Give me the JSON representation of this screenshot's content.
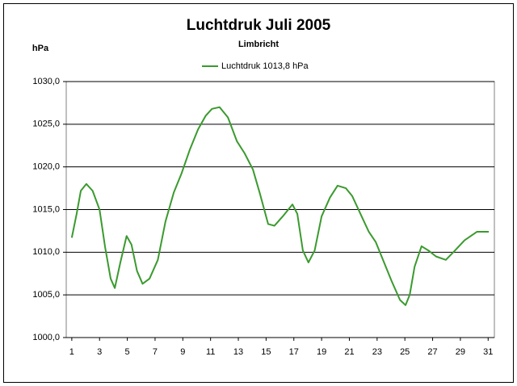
{
  "chart_data": {
    "type": "line",
    "title": "Luchtdruk Juli 2005",
    "subtitle": "Limbricht",
    "y_label": "hPa",
    "x": [
      1,
      1.35,
      1.65,
      2.05,
      2.5,
      3,
      3.4,
      3.8,
      4.1,
      4.5,
      4.95,
      5.3,
      5.7,
      6.1,
      6.6,
      7.2,
      7.75,
      8.35,
      8.9,
      9.5,
      10.1,
      10.65,
      11.1,
      11.65,
      12.25,
      12.9,
      13.45,
      14.05,
      14.55,
      15.15,
      15.6,
      16.2,
      16.9,
      17.25,
      17.65,
      18.05,
      18.5,
      19,
      19.6,
      20.15,
      20.75,
      21.2,
      21.8,
      22.4,
      22.9,
      23.5,
      24.05,
      24.65,
      25.05,
      25.35,
      25.7,
      26.2,
      26.7,
      27.25,
      27.95,
      28.55,
      29.3,
      30.2,
      31.05
    ],
    "series": [
      {
        "name": "Luchtdruk 1013,8 hPa",
        "color": "#3a9a2e",
        "values": [
          1011.7,
          1014.5,
          1017.2,
          1018.0,
          1017.2,
          1015.0,
          1010.6,
          1006.9,
          1005.8,
          1008.8,
          1011.9,
          1010.9,
          1007.8,
          1006.3,
          1006.9,
          1009.1,
          1013.6,
          1017.0,
          1019.2,
          1022.0,
          1024.4,
          1026.0,
          1026.8,
          1027.0,
          1025.8,
          1023.0,
          1021.6,
          1019.7,
          1016.9,
          1013.3,
          1013.1,
          1014.2,
          1015.6,
          1014.5,
          1010.2,
          1008.8,
          1010.2,
          1014.2,
          1016.4,
          1017.8,
          1017.5,
          1016.6,
          1014.5,
          1012.4,
          1011.2,
          1008.8,
          1006.6,
          1004.4,
          1003.8,
          1005.0,
          1008.3,
          1010.7,
          1010.2,
          1009.5,
          1009.1,
          1010.1,
          1011.4,
          1012.4,
          1012.4
        ]
      }
    ],
    "xlim": [
      0.6,
      31.45
    ],
    "xticks": [
      1,
      3,
      5,
      7,
      9,
      11,
      13,
      15,
      17,
      19,
      21,
      23,
      25,
      27,
      29,
      31
    ],
    "ylim": [
      1000,
      1030
    ],
    "yticks": [
      {
        "value": 1000,
        "label": "1000,0"
      },
      {
        "value": 1005,
        "label": "1005,0"
      },
      {
        "value": 1010,
        "label": "1010,0"
      },
      {
        "value": 1015,
        "label": "1015,0"
      },
      {
        "value": 1020,
        "label": "1020,0"
      },
      {
        "value": 1025,
        "label": "1025,0"
      },
      {
        "value": 1030,
        "label": "1030,0"
      }
    ],
    "grid": true
  }
}
